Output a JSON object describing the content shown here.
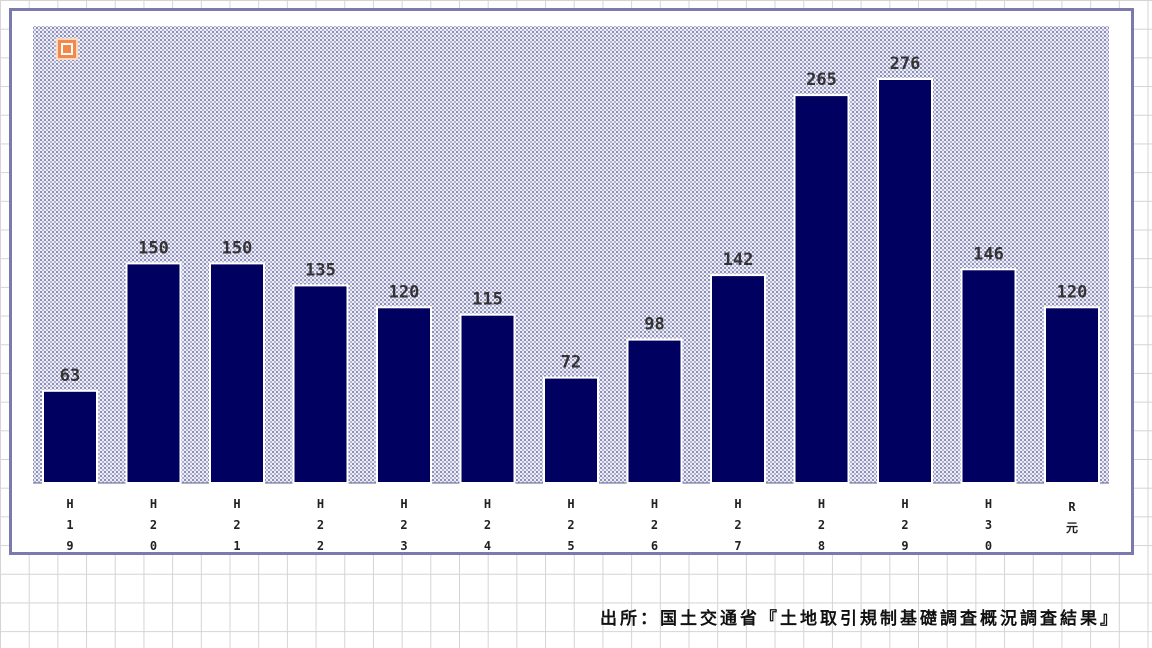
{
  "chart_data": {
    "type": "bar",
    "title": "",
    "xlabel": "",
    "ylabel": "",
    "categories": [
      "H19",
      "H20",
      "H21",
      "H22",
      "H23",
      "H24",
      "H25",
      "H26",
      "H27",
      "H28",
      "H29",
      "H30",
      "R元"
    ],
    "values": [
      63,
      150,
      150,
      135,
      120,
      115,
      72,
      98,
      142,
      265,
      276,
      146,
      120
    ],
    "ylim": [
      0,
      300
    ],
    "grid": false,
    "legend": "none",
    "bar_color": "#000060",
    "plot_background": "#dcdcee"
  },
  "badge": {
    "icon": "new-badge-icon",
    "color": "#f2894a"
  },
  "source": "出所：国土交通省『土地取引規制基礎調査概況調査結果』"
}
